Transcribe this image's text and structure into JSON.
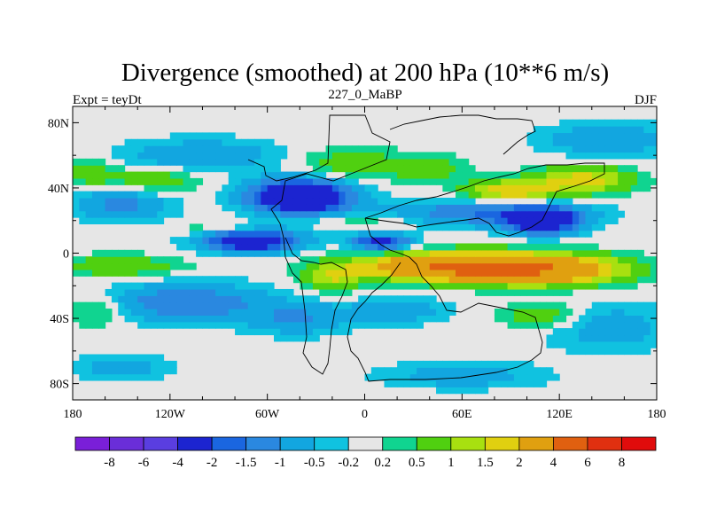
{
  "chart_data": {
    "type": "heatmap",
    "title": "Divergence (smoothed) at 200 hPa (10**6 m/s)",
    "left_subtitle": "Expt = teyDt",
    "center_subtitle": "227_0_MaBP",
    "right_subtitle": "DJF",
    "x_ticks": [
      {
        "value": -180,
        "label": "180"
      },
      {
        "value": -120,
        "label": "120W"
      },
      {
        "value": -60,
        "label": "60W"
      },
      {
        "value": 0,
        "label": "0"
      },
      {
        "value": 60,
        "label": "60E"
      },
      {
        "value": 120,
        "label": "120E"
      },
      {
        "value": 180,
        "label": "180"
      }
    ],
    "y_ticks": [
      {
        "value": 80,
        "label": "80N"
      },
      {
        "value": 40,
        "label": "40N"
      },
      {
        "value": 0,
        "label": "0"
      },
      {
        "value": -40,
        "label": "40S"
      },
      {
        "value": -80,
        "label": "80S"
      }
    ],
    "xlim": [
      -180,
      180
    ],
    "ylim": [
      -90,
      90
    ],
    "levels": [
      -8,
      -6,
      -4,
      -2,
      -1.5,
      -1,
      -0.5,
      -0.2,
      0.2,
      0.5,
      1,
      1.5,
      2,
      4,
      6,
      8
    ],
    "level_labels": [
      "-8",
      "-6",
      "-4",
      "-2",
      "-1.5",
      "-1",
      "-0.5",
      "-0.2",
      "0.2",
      "0.5",
      "1",
      "1.5",
      "2",
      "4",
      "6",
      "8"
    ],
    "colors": [
      "#7a1fd8",
      "#6a2ed8",
      "#5a3ee0",
      "#1c24d0",
      "#1a66e0",
      "#2a88e0",
      "#12a6e0",
      "#10c2e0",
      "#e6e6e6",
      "#10d490",
      "#50d010",
      "#a8e010",
      "#e0d010",
      "#e0a010",
      "#e06010",
      "#e03010",
      "#e00c0c"
    ],
    "field_blobs": [
      {
        "lon": -40,
        "lat": 35,
        "rlon": 30,
        "rlat": 10,
        "v": -4
      },
      {
        "lon": -70,
        "lat": 8,
        "rlon": 30,
        "rlat": 7,
        "v": -3
      },
      {
        "lon": 10,
        "lat": 7,
        "rlon": 18,
        "rlat": 5,
        "v": -2.5
      },
      {
        "lon": 75,
        "lat": 25,
        "rlon": 60,
        "rlat": 8,
        "v": -1.5
      },
      {
        "lon": 110,
        "lat": 20,
        "rlon": 22,
        "rlat": 8,
        "v": -3
      },
      {
        "lon": -150,
        "lat": 30,
        "rlon": 30,
        "rlat": 10,
        "v": -1.2
      },
      {
        "lon": -100,
        "lat": 60,
        "rlon": 50,
        "rlat": 10,
        "v": -1
      },
      {
        "lon": 150,
        "lat": 70,
        "rlon": 40,
        "rlat": 10,
        "v": -1
      },
      {
        "lon": -110,
        "lat": -30,
        "rlon": 50,
        "rlat": 12,
        "v": -1.5
      },
      {
        "lon": -40,
        "lat": -40,
        "rlon": 30,
        "rlat": 10,
        "v": -1
      },
      {
        "lon": 150,
        "lat": -45,
        "rlon": 40,
        "rlat": 15,
        "v": -0.8
      },
      {
        "lon": 60,
        "lat": -75,
        "rlon": 50,
        "rlat": 8,
        "v": -0.8
      },
      {
        "lon": -150,
        "lat": -70,
        "rlon": 30,
        "rlat": 8,
        "v": -0.8
      },
      {
        "lon": 20,
        "lat": -35,
        "rlon": 30,
        "rlat": 8,
        "v": -0.9
      },
      {
        "lon": 55,
        "lat": -8,
        "rlon": 55,
        "rlat": 8,
        "v": 4
      },
      {
        "lon": 110,
        "lat": -10,
        "rlon": 50,
        "rlat": 9,
        "v": 3
      },
      {
        "lon": -20,
        "lat": -15,
        "rlon": 18,
        "rlat": 9,
        "v": 1.3
      },
      {
        "lon": -150,
        "lat": -8,
        "rlon": 40,
        "rlat": 7,
        "v": 0.9
      },
      {
        "lon": -165,
        "lat": -35,
        "rlon": 18,
        "rlat": 10,
        "v": 0.8
      },
      {
        "lon": 90,
        "lat": 38,
        "rlon": 28,
        "rlat": 7,
        "v": 2
      },
      {
        "lon": 135,
        "lat": 45,
        "rlon": 30,
        "rlat": 8,
        "v": 1.8
      },
      {
        "lon": -130,
        "lat": 45,
        "rlon": 30,
        "rlat": 8,
        "v": 0.9
      },
      {
        "lon": -10,
        "lat": 55,
        "rlon": 35,
        "rlat": 10,
        "v": 0.8
      },
      {
        "lon": 40,
        "lat": 52,
        "rlon": 25,
        "rlat": 8,
        "v": 0.7
      },
      {
        "lon": 110,
        "lat": -38,
        "rlon": 25,
        "rlat": 8,
        "v": 1
      },
      {
        "lon": -90,
        "lat": 15,
        "rlon": 30,
        "rlat": 4,
        "v": 0.6
      },
      {
        "lon": 0,
        "lat": 20,
        "rlon": 30,
        "rlat": 4,
        "v": 0.6
      },
      {
        "lon": -170,
        "lat": 50,
        "rlon": 15,
        "rlat": 8,
        "v": 0.9
      }
    ]
  }
}
